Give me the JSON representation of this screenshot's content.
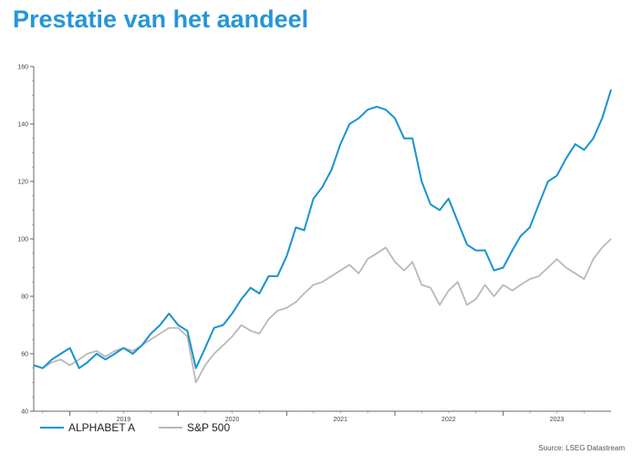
{
  "page": {
    "title": "Prestatie van het aandeel"
  },
  "source": "Source: LSEG Datastream",
  "colors": {
    "title": "#2596d8",
    "alphabet": "#1a93d0",
    "sp500": "#b9b9b9"
  },
  "chart_data": {
    "type": "line",
    "title": "",
    "xlabel": "",
    "ylabel": "",
    "ylim": [
      40,
      160
    ],
    "yticks": [
      40,
      60,
      80,
      100,
      120,
      140,
      160
    ],
    "xlim": [
      "2018-09-01",
      "2023-12-31"
    ],
    "xtick_labels": [
      "2019",
      "2020",
      "2021",
      "2022",
      "2023"
    ],
    "grid": false,
    "legend_position": "bottom-left",
    "series": [
      {
        "name": "ALPHABET A",
        "color": "#1a93d0",
        "points": [
          [
            "2018-09-01",
            56
          ],
          [
            "2018-10-01",
            55
          ],
          [
            "2018-11-01",
            58
          ],
          [
            "2018-12-01",
            60
          ],
          [
            "2019-01-01",
            62
          ],
          [
            "2019-02-01",
            55
          ],
          [
            "2019-03-01",
            57
          ],
          [
            "2019-04-01",
            60
          ],
          [
            "2019-05-01",
            58
          ],
          [
            "2019-06-01",
            60
          ],
          [
            "2019-07-01",
            62
          ],
          [
            "2019-08-01",
            60
          ],
          [
            "2019-09-01",
            63
          ],
          [
            "2019-10-01",
            67
          ],
          [
            "2019-11-01",
            70
          ],
          [
            "2019-12-01",
            74
          ],
          [
            "2020-01-01",
            70
          ],
          [
            "2020-02-01",
            68
          ],
          [
            "2020-03-01",
            55
          ],
          [
            "2020-04-01",
            62
          ],
          [
            "2020-05-01",
            69
          ],
          [
            "2020-06-01",
            70
          ],
          [
            "2020-07-01",
            74
          ],
          [
            "2020-08-01",
            79
          ],
          [
            "2020-09-01",
            83
          ],
          [
            "2020-10-01",
            81
          ],
          [
            "2020-11-01",
            87
          ],
          [
            "2020-12-01",
            87
          ],
          [
            "2021-01-01",
            94
          ],
          [
            "2021-02-01",
            104
          ],
          [
            "2021-03-01",
            103
          ],
          [
            "2021-04-01",
            114
          ],
          [
            "2021-05-01",
            118
          ],
          [
            "2021-06-01",
            124
          ],
          [
            "2021-07-01",
            133
          ],
          [
            "2021-08-01",
            140
          ],
          [
            "2021-09-01",
            142
          ],
          [
            "2021-10-01",
            145
          ],
          [
            "2021-11-01",
            146
          ],
          [
            "2021-12-01",
            145
          ],
          [
            "2022-01-01",
            142
          ],
          [
            "2022-02-01",
            135
          ],
          [
            "2022-03-01",
            135
          ],
          [
            "2022-04-01",
            120
          ],
          [
            "2022-05-01",
            112
          ],
          [
            "2022-06-01",
            110
          ],
          [
            "2022-07-01",
            114
          ],
          [
            "2022-08-01",
            106
          ],
          [
            "2022-09-01",
            98
          ],
          [
            "2022-10-01",
            96
          ],
          [
            "2022-11-01",
            96
          ],
          [
            "2022-12-01",
            89
          ],
          [
            "2023-01-01",
            90
          ],
          [
            "2023-02-01",
            96
          ],
          [
            "2023-03-01",
            101
          ],
          [
            "2023-04-01",
            104
          ],
          [
            "2023-05-01",
            112
          ],
          [
            "2023-06-01",
            120
          ],
          [
            "2023-07-01",
            122
          ],
          [
            "2023-08-01",
            128
          ],
          [
            "2023-09-01",
            133
          ],
          [
            "2023-10-01",
            131
          ],
          [
            "2023-11-01",
            135
          ],
          [
            "2023-12-01",
            142
          ],
          [
            "2023-12-31",
            152
          ]
        ]
      },
      {
        "name": "S&P 500",
        "color": "#b9b9b9",
        "points": [
          [
            "2018-09-01",
            56
          ],
          [
            "2018-10-01",
            55
          ],
          [
            "2018-11-01",
            57
          ],
          [
            "2018-12-01",
            58
          ],
          [
            "2019-01-01",
            56
          ],
          [
            "2019-02-01",
            58
          ],
          [
            "2019-03-01",
            60
          ],
          [
            "2019-04-01",
            61
          ],
          [
            "2019-05-01",
            59
          ],
          [
            "2019-06-01",
            61
          ],
          [
            "2019-07-01",
            62
          ],
          [
            "2019-08-01",
            61
          ],
          [
            "2019-09-01",
            63
          ],
          [
            "2019-10-01",
            65
          ],
          [
            "2019-11-01",
            67
          ],
          [
            "2019-12-01",
            69
          ],
          [
            "2020-01-01",
            69
          ],
          [
            "2020-02-01",
            66
          ],
          [
            "2020-03-01",
            50
          ],
          [
            "2020-04-01",
            56
          ],
          [
            "2020-05-01",
            60
          ],
          [
            "2020-06-01",
            63
          ],
          [
            "2020-07-01",
            66
          ],
          [
            "2020-08-01",
            70
          ],
          [
            "2020-09-01",
            68
          ],
          [
            "2020-10-01",
            67
          ],
          [
            "2020-11-01",
            72
          ],
          [
            "2020-12-01",
            75
          ],
          [
            "2021-01-01",
            76
          ],
          [
            "2021-02-01",
            78
          ],
          [
            "2021-03-01",
            81
          ],
          [
            "2021-04-01",
            84
          ],
          [
            "2021-05-01",
            85
          ],
          [
            "2021-06-01",
            87
          ],
          [
            "2021-07-01",
            89
          ],
          [
            "2021-08-01",
            91
          ],
          [
            "2021-09-01",
            88
          ],
          [
            "2021-10-01",
            93
          ],
          [
            "2021-11-01",
            95
          ],
          [
            "2021-12-01",
            97
          ],
          [
            "2022-01-01",
            92
          ],
          [
            "2022-02-01",
            89
          ],
          [
            "2022-03-01",
            92
          ],
          [
            "2022-04-01",
            84
          ],
          [
            "2022-05-01",
            83
          ],
          [
            "2022-06-01",
            77
          ],
          [
            "2022-07-01",
            82
          ],
          [
            "2022-08-01",
            85
          ],
          [
            "2022-09-01",
            77
          ],
          [
            "2022-10-01",
            79
          ],
          [
            "2022-11-01",
            84
          ],
          [
            "2022-12-01",
            80
          ],
          [
            "2023-01-01",
            84
          ],
          [
            "2023-02-01",
            82
          ],
          [
            "2023-03-01",
            84
          ],
          [
            "2023-04-01",
            86
          ],
          [
            "2023-05-01",
            87
          ],
          [
            "2023-06-01",
            90
          ],
          [
            "2023-07-01",
            93
          ],
          [
            "2023-08-01",
            90
          ],
          [
            "2023-09-01",
            88
          ],
          [
            "2023-10-01",
            86
          ],
          [
            "2023-11-01",
            93
          ],
          [
            "2023-12-01",
            97
          ],
          [
            "2023-12-31",
            100
          ]
        ]
      }
    ]
  }
}
